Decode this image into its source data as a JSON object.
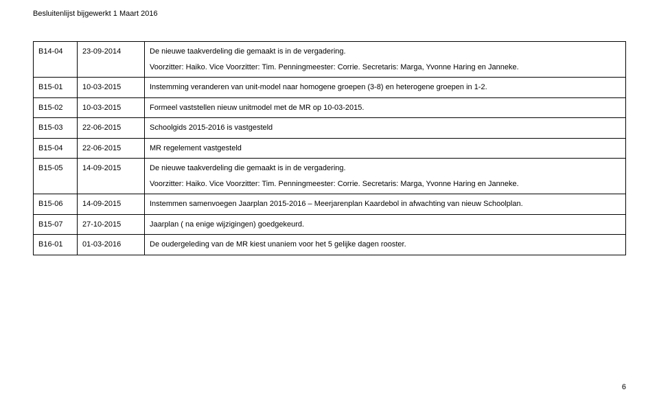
{
  "header": "Besluitenlijst bijgewerkt 1 Maart 2016",
  "footer": "6",
  "table": {
    "columns": {
      "c1_width": 64,
      "c2_width": 98
    },
    "cell_fontsize": 11,
    "border_color": "#000000",
    "background_color": "#ffffff",
    "text_color": "#000000",
    "rows": [
      {
        "code": "B14-04",
        "date": "23-09-2014",
        "multi": true,
        "lines": [
          "De nieuwe taakverdeling die gemaakt is in de vergadering.",
          "Voorzitter: Haiko. Vice Voorzitter: Tim. Penningmeester: Corrie. Secretaris: Marga, Yvonne Haring en Janneke."
        ]
      },
      {
        "code": "B15-01",
        "date": "10-03-2015",
        "desc": "Instemming veranderen van unit-model naar homogene groepen (3-8) en heterogene groepen in 1-2."
      },
      {
        "code": "B15-02",
        "date": "10-03-2015",
        "desc": "Formeel vaststellen nieuw unitmodel met de MR op 10-03-2015."
      },
      {
        "code": "B15-03",
        "date": "22-06-2015",
        "desc": "Schoolgids 2015-2016 is vastgesteld"
      },
      {
        "code": "B15-04",
        "date": "22-06-2015",
        "desc": "MR regelement vastgesteld"
      },
      {
        "code": "B15-05",
        "date": "14-09-2015",
        "multi": true,
        "lines": [
          "De nieuwe taakverdeling die gemaakt is in de vergadering.",
          "Voorzitter: Haiko. Vice Voorzitter: Tim. Penningmeester: Corrie. Secretaris: Marga, Yvonne Haring en Janneke."
        ]
      },
      {
        "code": "B15-06",
        "date": "14-09-2015",
        "desc": "Instemmen samenvoegen Jaarplan 2015-2016 – Meerjarenplan Kaardebol in afwachting van nieuw Schoolplan."
      },
      {
        "code": "B15-07",
        "date": "27-10-2015",
        "desc": "Jaarplan ( na enige wijzigingen) goedgekeurd."
      },
      {
        "code": "B16-01",
        "date": "01-03-2016",
        "desc": "De oudergeleding van de MR kiest unaniem voor het 5 gelijke dagen rooster."
      }
    ]
  }
}
